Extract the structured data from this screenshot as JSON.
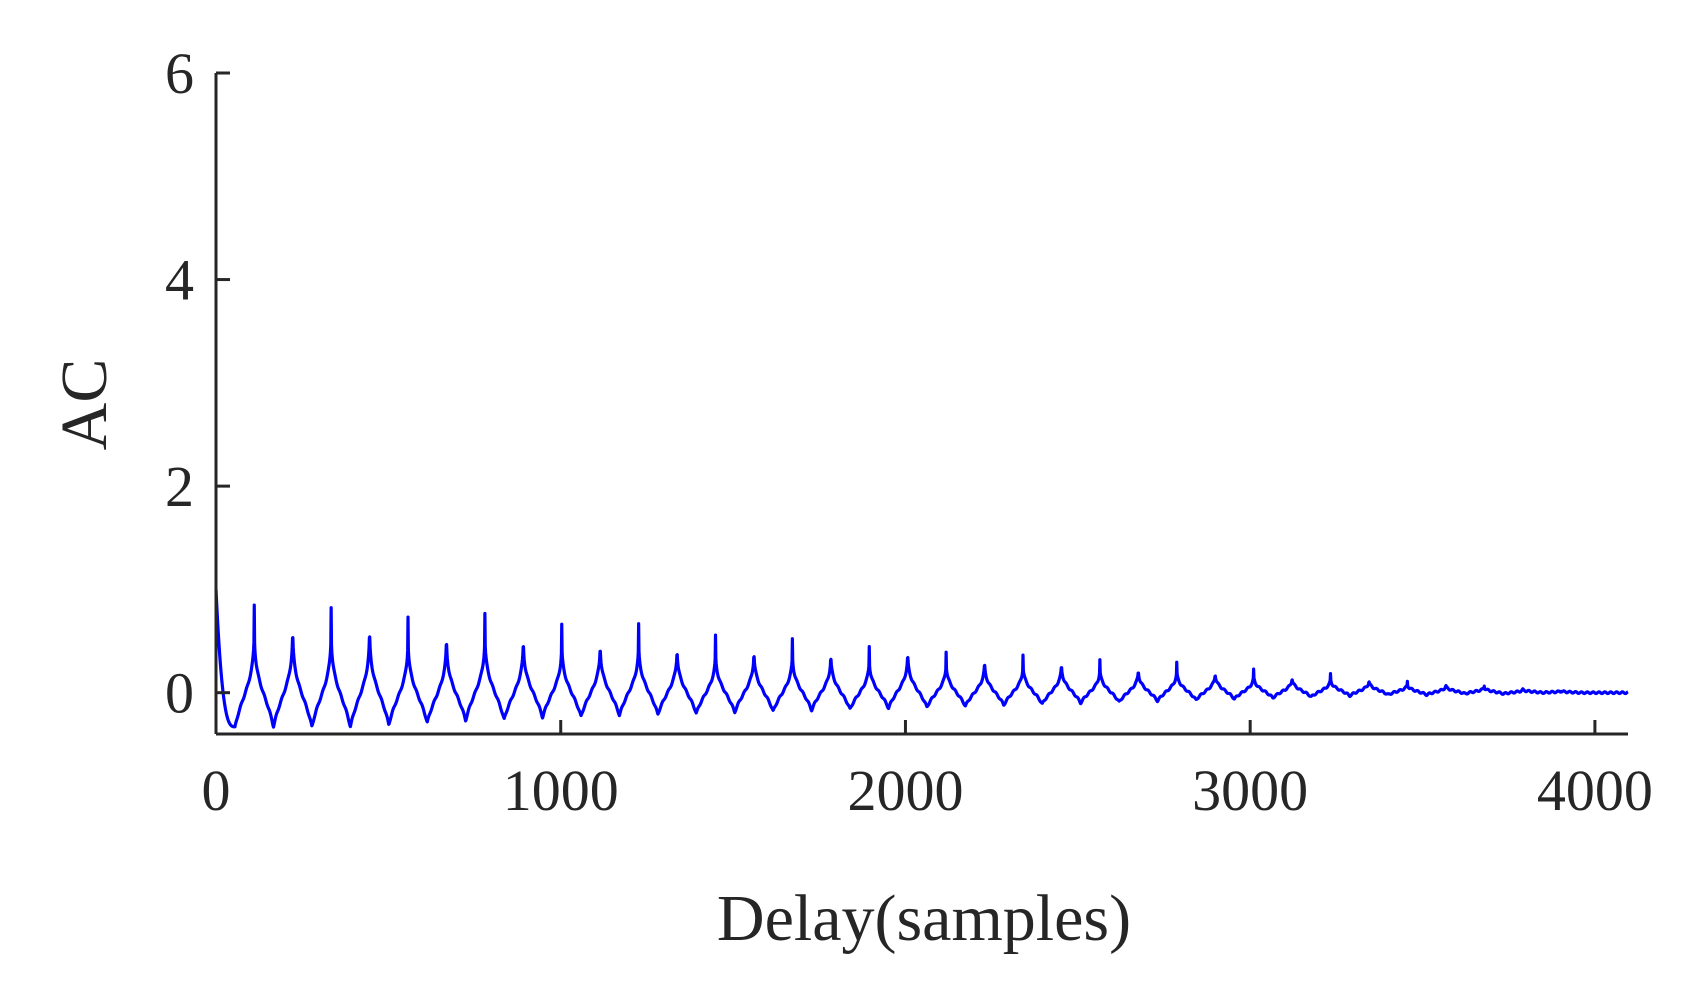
{
  "chart_data": {
    "type": "line",
    "title": "",
    "xlabel": "Delay(samples)",
    "ylabel": "AC",
    "xlim": [
      0,
      4096
    ],
    "ylim": [
      -0.4,
      6
    ],
    "x_ticks": [
      0,
      1000,
      2000,
      3000,
      4000
    ],
    "x_tick_labels": [
      "0",
      "1000",
      "2000",
      "3000",
      "4000"
    ],
    "y_ticks": [
      0,
      2,
      4,
      6
    ],
    "y_tick_labels": [
      "0",
      "2",
      "4",
      "6"
    ],
    "grid": false,
    "legend": "none",
    "series": [
      {
        "color": "#0000ff",
        "signal": {
          "length_samples": 4096,
          "value_at_zero": 1.0,
          "period_samples": 111.5,
          "first_peak_samples": 111,
          "peak_heights": [
            0.85,
            0.83,
            0.83,
            0.83,
            0.74,
            0.72,
            0.77,
            0.69,
            0.66,
            0.63,
            0.66,
            0.58,
            0.55,
            0.54,
            0.52,
            0.49,
            0.45,
            0.5,
            0.4,
            0.39,
            0.37,
            0.36,
            0.32,
            0.29,
            0.29,
            0.25,
            0.22,
            0.19,
            0.18,
            0.15,
            0.11,
            0.09,
            0.07,
            0.04,
            0.02,
            0.0
          ],
          "trough_values": [
            -0.33,
            -0.33,
            -0.33,
            -0.31,
            -0.29,
            -0.27,
            -0.26,
            -0.24,
            -0.23,
            -0.22,
            -0.21,
            -0.2,
            -0.19,
            -0.18,
            -0.17,
            -0.16,
            -0.15,
            -0.14,
            -0.13,
            -0.12,
            -0.11,
            -0.1,
            -0.09,
            -0.08,
            -0.07,
            -0.06,
            -0.05,
            -0.04,
            -0.03,
            -0.02,
            -0.02,
            -0.01,
            -0.01,
            0.0,
            0.0,
            0.0
          ]
        }
      }
    ]
  }
}
